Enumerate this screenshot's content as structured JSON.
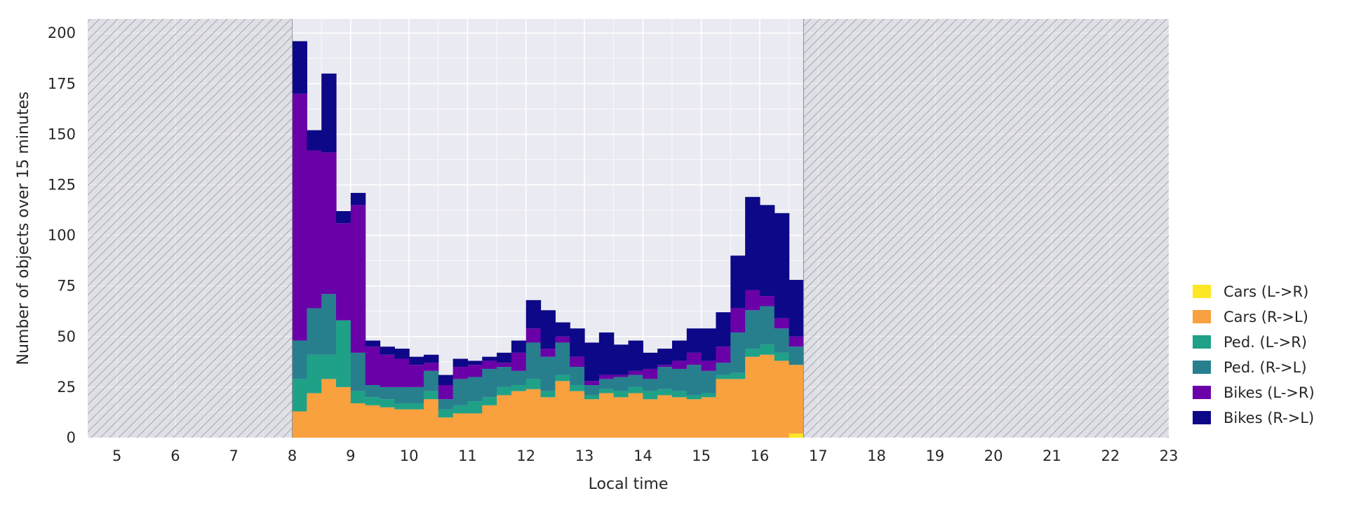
{
  "chart_data": {
    "type": "bar",
    "stacked": true,
    "xlabel": "Local time",
    "ylabel": "Number of objects over 15 minutes",
    "xlim": [
      4.5,
      23
    ],
    "ylim": [
      0,
      207
    ],
    "xticks": [
      "5",
      "6",
      "7",
      "8",
      "9",
      "10",
      "11",
      "12",
      "13",
      "14",
      "15",
      "16",
      "17",
      "18",
      "19",
      "20",
      "21",
      "22",
      "23"
    ],
    "yticks": [
      "0",
      "25",
      "50",
      "75",
      "100",
      "125",
      "150",
      "175",
      "200"
    ],
    "grid": true,
    "legend_position": "right",
    "bin_width_hours": 0.25,
    "observed_window": [
      8.0,
      16.75
    ],
    "unobserved_regions": [
      [
        4.5,
        8.0
      ],
      [
        16.75,
        23
      ]
    ],
    "x": [
      8.0,
      8.25,
      8.5,
      8.75,
      9.0,
      9.25,
      9.5,
      9.75,
      10.0,
      10.25,
      10.5,
      10.75,
      11.0,
      11.25,
      11.5,
      11.75,
      12.0,
      12.25,
      12.5,
      12.75,
      13.0,
      13.25,
      13.5,
      13.75,
      14.0,
      14.25,
      14.5,
      14.75,
      15.0,
      15.25,
      15.5,
      15.75,
      16.0,
      16.25,
      16.5
    ],
    "series": [
      {
        "name": "Cars (L->R)",
        "color": "#fde725",
        "values": [
          0,
          0,
          0,
          0,
          0,
          0,
          0,
          0,
          0,
          0,
          0,
          0,
          0,
          0,
          0,
          0,
          0,
          0,
          0,
          0,
          0,
          0,
          0,
          0,
          0,
          0,
          0,
          0,
          0,
          0,
          0,
          0,
          0,
          0,
          2
        ]
      },
      {
        "name": "Cars (R->L)",
        "color": "#f9a03f",
        "values": [
          13,
          22,
          29,
          25,
          17,
          16,
          15,
          14,
          14,
          19,
          10,
          12,
          12,
          16,
          21,
          23,
          24,
          20,
          28,
          23,
          19,
          22,
          20,
          22,
          19,
          21,
          20,
          19,
          20,
          29,
          29,
          40,
          41,
          38,
          34
        ]
      },
      {
        "name": "Ped. (L->R)",
        "color": "#1fa187",
        "values": [
          16,
          19,
          12,
          33,
          6,
          4,
          4,
          3,
          3,
          4,
          4,
          4,
          6,
          4,
          4,
          3,
          5,
          3,
          3,
          3,
          2,
          2,
          3,
          3,
          4,
          3,
          3,
          2,
          2,
          2,
          3,
          4,
          5,
          4,
          0
        ]
      },
      {
        "name": "Ped. (R->L)",
        "color": "#277f8e",
        "values": [
          19,
          23,
          30,
          0,
          19,
          6,
          6,
          8,
          8,
          10,
          5,
          13,
          12,
          14,
          10,
          7,
          18,
          17,
          16,
          9,
          5,
          5,
          7,
          6,
          6,
          11,
          11,
          15,
          11,
          6,
          20,
          19,
          19,
          12,
          9
        ]
      },
      {
        "name": "Bikes (L->R)",
        "color": "#6a00a8",
        "values": [
          122,
          78,
          70,
          48,
          73,
          19,
          16,
          14,
          11,
          4,
          7,
          6,
          6,
          4,
          2,
          9,
          7,
          4,
          3,
          5,
          2,
          2,
          1,
          2,
          5,
          1,
          4,
          6,
          5,
          8,
          12,
          10,
          5,
          5,
          5
        ]
      },
      {
        "name": "Bikes (R->L)",
        "color": "#0d0887",
        "values": [
          26,
          10,
          39,
          6,
          6,
          3,
          4,
          5,
          4,
          4,
          5,
          4,
          2,
          2,
          5,
          6,
          14,
          19,
          7,
          14,
          19,
          21,
          15,
          15,
          8,
          8,
          10,
          12,
          16,
          17,
          26,
          46,
          45,
          52,
          28
        ]
      }
    ]
  }
}
